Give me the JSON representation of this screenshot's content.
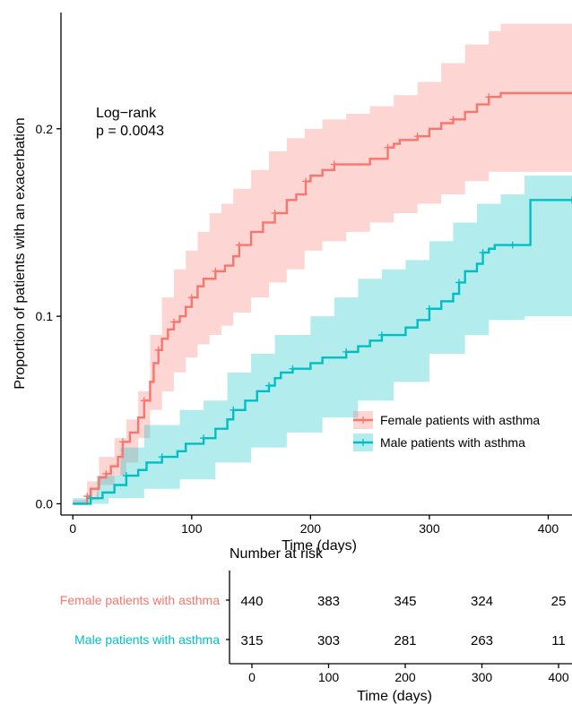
{
  "chart_data": {
    "type": "line",
    "subtype": "kaplan-meier cumulative incidence with confidence bands and risk table",
    "ylabel": "Proportion of patients with an exacerbation",
    "xlabel": "Time (days)",
    "xlim": [
      -10,
      420
    ],
    "ylim": [
      -0.006,
      0.262
    ],
    "x_ticks": [
      0,
      100,
      200,
      300,
      400
    ],
    "y_ticks": [
      0.0,
      0.1,
      0.2
    ],
    "y_tick_labels": [
      "0.0",
      "0.1",
      "0.2"
    ],
    "grid": false,
    "legend_position": "bottom-right",
    "annotation": {
      "line1": "Log−rank",
      "line2": "p = 0.0043"
    },
    "series": [
      {
        "name": "Female patients with asthma",
        "color": "#F8766D",
        "band_color": "#F8766D",
        "points": [
          [
            0,
            0
          ],
          [
            12,
            0.004
          ],
          [
            15,
            0.008
          ],
          [
            22,
            0.014
          ],
          [
            28,
            0.016
          ],
          [
            32,
            0.02
          ],
          [
            38,
            0.025
          ],
          [
            42,
            0.033
          ],
          [
            48,
            0.038
          ],
          [
            55,
            0.046
          ],
          [
            60,
            0.055
          ],
          [
            65,
            0.065
          ],
          [
            68,
            0.075
          ],
          [
            72,
            0.082
          ],
          [
            75,
            0.088
          ],
          [
            80,
            0.093
          ],
          [
            85,
            0.097
          ],
          [
            90,
            0.1
          ],
          [
            95,
            0.105
          ],
          [
            100,
            0.11
          ],
          [
            105,
            0.116
          ],
          [
            110,
            0.12
          ],
          [
            120,
            0.124
          ],
          [
            128,
            0.127
          ],
          [
            135,
            0.132
          ],
          [
            140,
            0.138
          ],
          [
            150,
            0.145
          ],
          [
            160,
            0.15
          ],
          [
            170,
            0.155
          ],
          [
            180,
            0.162
          ],
          [
            188,
            0.165
          ],
          [
            196,
            0.172
          ],
          [
            200,
            0.175
          ],
          [
            210,
            0.178
          ],
          [
            220,
            0.181
          ],
          [
            250,
            0.184
          ],
          [
            260,
            0.184
          ],
          [
            265,
            0.19
          ],
          [
            270,
            0.192
          ],
          [
            275,
            0.194
          ],
          [
            290,
            0.196
          ],
          [
            300,
            0.2
          ],
          [
            310,
            0.203
          ],
          [
            320,
            0.205
          ],
          [
            330,
            0.209
          ],
          [
            340,
            0.213
          ],
          [
            350,
            0.217
          ],
          [
            360,
            0.219
          ],
          [
            420,
            0.219
          ]
        ],
        "ci_lower": [
          [
            0,
            0
          ],
          [
            12,
            0
          ],
          [
            22,
            0.002
          ],
          [
            35,
            0.01
          ],
          [
            45,
            0.015
          ],
          [
            55,
            0.022
          ],
          [
            65,
            0.035
          ],
          [
            75,
            0.05
          ],
          [
            85,
            0.06
          ],
          [
            95,
            0.07
          ],
          [
            105,
            0.078
          ],
          [
            115,
            0.085
          ],
          [
            125,
            0.09
          ],
          [
            135,
            0.095
          ],
          [
            150,
            0.102
          ],
          [
            165,
            0.11
          ],
          [
            180,
            0.118
          ],
          [
            195,
            0.125
          ],
          [
            210,
            0.135
          ],
          [
            230,
            0.14
          ],
          [
            250,
            0.145
          ],
          [
            270,
            0.15
          ],
          [
            290,
            0.155
          ],
          [
            310,
            0.16
          ],
          [
            330,
            0.165
          ],
          [
            350,
            0.172
          ],
          [
            380,
            0.177
          ],
          [
            420,
            0.177
          ]
        ],
        "ci_upper": [
          [
            0,
            0.002
          ],
          [
            12,
            0.012
          ],
          [
            22,
            0.025
          ],
          [
            35,
            0.035
          ],
          [
            45,
            0.045
          ],
          [
            55,
            0.06
          ],
          [
            65,
            0.09
          ],
          [
            75,
            0.11
          ],
          [
            85,
            0.125
          ],
          [
            95,
            0.135
          ],
          [
            105,
            0.145
          ],
          [
            115,
            0.155
          ],
          [
            125,
            0.16
          ],
          [
            135,
            0.168
          ],
          [
            150,
            0.178
          ],
          [
            165,
            0.188
          ],
          [
            180,
            0.195
          ],
          [
            195,
            0.2
          ],
          [
            210,
            0.205
          ],
          [
            230,
            0.208
          ],
          [
            250,
            0.212
          ],
          [
            270,
            0.218
          ],
          [
            290,
            0.225
          ],
          [
            310,
            0.235
          ],
          [
            330,
            0.245
          ],
          [
            350,
            0.252
          ],
          [
            360,
            0.256
          ],
          [
            420,
            0.256
          ]
        ]
      },
      {
        "name": "Male patients with asthma",
        "color": "#00BFC4",
        "band_color": "#00BFC4",
        "points": [
          [
            0,
            0
          ],
          [
            15,
            0.003
          ],
          [
            25,
            0.006
          ],
          [
            35,
            0.01
          ],
          [
            45,
            0.015
          ],
          [
            55,
            0.018
          ],
          [
            62,
            0.022
          ],
          [
            75,
            0.025
          ],
          [
            88,
            0.028
          ],
          [
            95,
            0.032
          ],
          [
            110,
            0.035
          ],
          [
            120,
            0.04
          ],
          [
            130,
            0.045
          ],
          [
            135,
            0.05
          ],
          [
            145,
            0.055
          ],
          [
            155,
            0.06
          ],
          [
            165,
            0.063
          ],
          [
            170,
            0.067
          ],
          [
            175,
            0.07
          ],
          [
            185,
            0.072
          ],
          [
            200,
            0.075
          ],
          [
            210,
            0.078
          ],
          [
            230,
            0.081
          ],
          [
            240,
            0.084
          ],
          [
            250,
            0.087
          ],
          [
            260,
            0.09
          ],
          [
            280,
            0.094
          ],
          [
            290,
            0.098
          ],
          [
            300,
            0.104
          ],
          [
            310,
            0.108
          ],
          [
            320,
            0.112
          ],
          [
            325,
            0.118
          ],
          [
            330,
            0.124
          ],
          [
            340,
            0.128
          ],
          [
            345,
            0.134
          ],
          [
            350,
            0.136
          ],
          [
            355,
            0.138
          ],
          [
            370,
            0.138
          ],
          [
            383,
            0.138
          ],
          [
            385,
            0.162
          ],
          [
            420,
            0.162
          ]
        ],
        "ci_lower": [
          [
            0,
            0
          ],
          [
            30,
            0
          ],
          [
            60,
            0.003
          ],
          [
            90,
            0.008
          ],
          [
            120,
            0.013
          ],
          [
            150,
            0.022
          ],
          [
            180,
            0.03
          ],
          [
            210,
            0.038
          ],
          [
            240,
            0.046
          ],
          [
            270,
            0.055
          ],
          [
            300,
            0.065
          ],
          [
            330,
            0.08
          ],
          [
            350,
            0.09
          ],
          [
            380,
            0.098
          ],
          [
            420,
            0.1
          ]
        ],
        "ci_upper": [
          [
            0,
            0.003
          ],
          [
            20,
            0.015
          ],
          [
            40,
            0.03
          ],
          [
            60,
            0.042
          ],
          [
            90,
            0.05
          ],
          [
            110,
            0.055
          ],
          [
            130,
            0.07
          ],
          [
            150,
            0.08
          ],
          [
            170,
            0.09
          ],
          [
            200,
            0.1
          ],
          [
            220,
            0.11
          ],
          [
            240,
            0.12
          ],
          [
            260,
            0.125
          ],
          [
            280,
            0.13
          ],
          [
            300,
            0.14
          ],
          [
            320,
            0.15
          ],
          [
            340,
            0.16
          ],
          [
            360,
            0.165
          ],
          [
            380,
            0.175
          ],
          [
            420,
            0.175
          ]
        ]
      }
    ],
    "risk_table": {
      "title": "Number at risk",
      "xlabel": "Time (days)",
      "x_ticks": [
        0,
        100,
        200,
        300,
        400
      ],
      "rows": [
        {
          "label": "Female patients with asthma",
          "color": "#F8766D",
          "values": [
            "440",
            "383",
            "345",
            "324",
            "25"
          ]
        },
        {
          "label": "Male patients with asthma",
          "color": "#00BFC4",
          "values": [
            "315",
            "303",
            "281",
            "263",
            "11"
          ]
        }
      ]
    }
  }
}
